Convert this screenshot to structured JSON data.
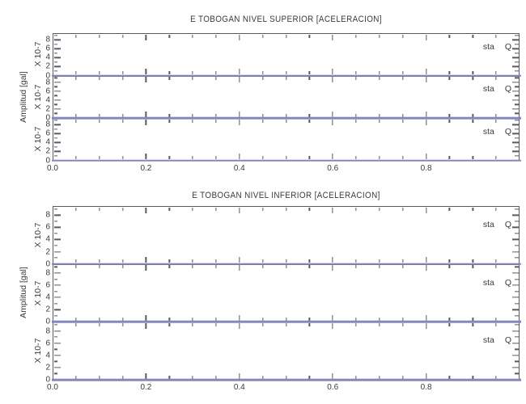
{
  "figure": {
    "background": "#ffffff",
    "frame_color": "#5a5a62",
    "text_color": "#3a3a40",
    "zero_line_color": "#8587bb"
  },
  "chart_data": [
    {
      "type": "line",
      "title": "E TOBOGAN NIVEL SUPERIOR [ACELERACION]",
      "ylabel": "Amplitud [gal]",
      "xlabel": "",
      "y_scale_label": "X 10-7",
      "xlim": [
        0,
        1.0
      ],
      "x_tick_labels": [
        "0.0",
        "0.2",
        "0.4",
        "0.6",
        "0.8"
      ],
      "x_major_step": 0.2,
      "x_minor_step": 0.05,
      "ylim": [
        0,
        9.5
      ],
      "y_tick_labels": [
        "0",
        "2",
        "4",
        "6",
        "8"
      ],
      "y_major_step": 2,
      "y_minor_step": 1,
      "grid": false,
      "legend_position": "none",
      "subplots": [
        {
          "station_label": "sta",
          "station_code": "Q",
          "series": [
            {
              "name": "sta Q",
              "x": [
                0.0,
                1.0
              ],
              "y": [
                0.0,
                0.0
              ]
            }
          ]
        },
        {
          "station_label": "sta",
          "station_code": "Q",
          "series": [
            {
              "name": "sta Q",
              "x": [
                0.0,
                1.0
              ],
              "y": [
                0.0,
                0.0
              ]
            }
          ]
        },
        {
          "station_label": "sta",
          "station_code": "Q",
          "series": [
            {
              "name": "sta Q",
              "x": [
                0.0,
                1.0
              ],
              "y": [
                0.0,
                0.0
              ]
            }
          ]
        }
      ]
    },
    {
      "type": "line",
      "title": "E TOBOGAN NIVEL INFERIOR [ACELERACION]",
      "ylabel": "Amplitud [gal]",
      "xlabel": "",
      "y_scale_label": "X 10-7",
      "xlim": [
        0,
        1.0
      ],
      "x_tick_labels": [
        "0.0",
        "0.2",
        "0.4",
        "0.6",
        "0.8"
      ],
      "x_major_step": 0.2,
      "x_minor_step": 0.05,
      "ylim": [
        0,
        9.5
      ],
      "y_tick_labels": [
        "0",
        "2",
        "4",
        "6",
        "8"
      ],
      "y_major_step": 2,
      "y_minor_step": 1,
      "grid": false,
      "legend_position": "none",
      "subplots": [
        {
          "station_label": "sta",
          "station_code": "Q",
          "series": [
            {
              "name": "sta Q",
              "x": [
                0.0,
                1.0
              ],
              "y": [
                0.0,
                0.0
              ]
            }
          ]
        },
        {
          "station_label": "sta",
          "station_code": "Q",
          "series": [
            {
              "name": "sta Q",
              "x": [
                0.0,
                1.0
              ],
              "y": [
                0.0,
                0.0
              ]
            }
          ]
        },
        {
          "station_label": "sta",
          "station_code": "Q",
          "series": [
            {
              "name": "sta Q",
              "x": [
                0.0,
                1.0
              ],
              "y": [
                0.0,
                0.0
              ]
            }
          ]
        }
      ]
    }
  ]
}
